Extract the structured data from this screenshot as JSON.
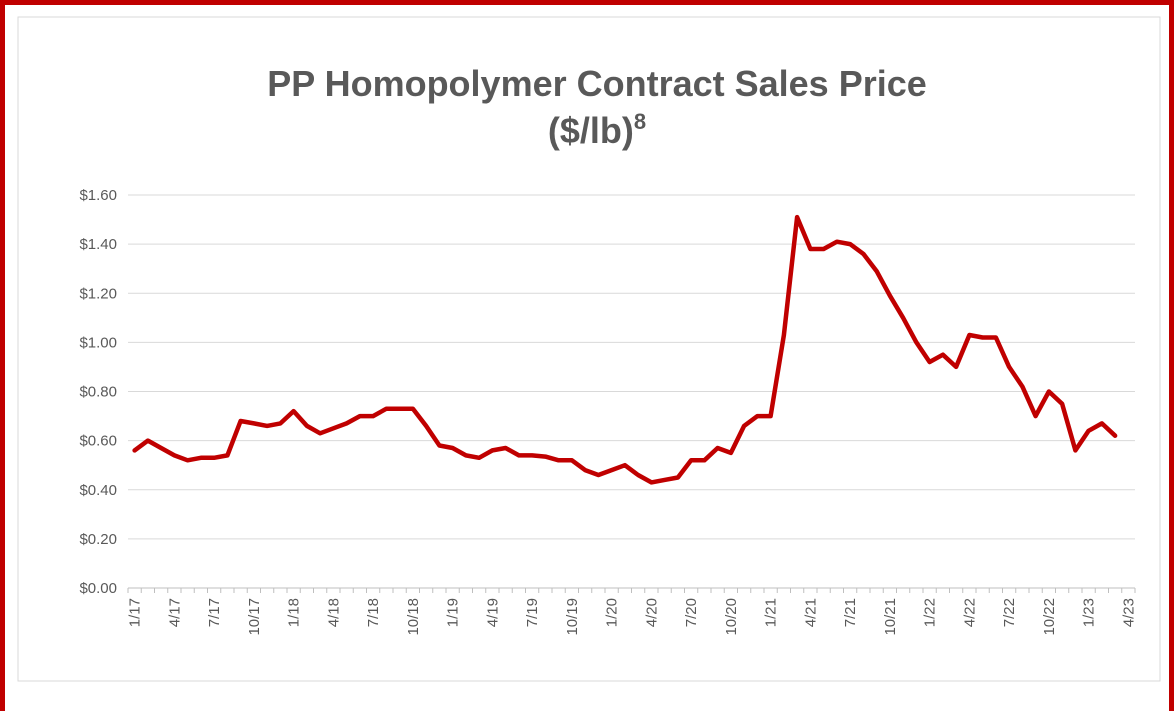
{
  "chart_data": {
    "type": "line",
    "title": [
      "PP Homopolymer Contract Sales Price",
      "($/lb)"
    ],
    "title_footnote_mark": "8",
    "categories": [
      "1/17",
      null,
      null,
      "4/17",
      null,
      null,
      "7/17",
      null,
      null,
      "10/17",
      null,
      null,
      "1/18",
      null,
      null,
      "4/18",
      null,
      null,
      "7/18",
      null,
      null,
      "10/18",
      null,
      null,
      "1/19",
      null,
      null,
      "4/19",
      null,
      null,
      "7/19",
      null,
      null,
      "10/19",
      null,
      null,
      "1/20",
      null,
      null,
      "4/20",
      null,
      null,
      "7/20",
      null,
      null,
      "10/20",
      null,
      null,
      "1/21",
      null,
      null,
      "4/21",
      null,
      null,
      "7/21",
      null,
      null,
      "10/21",
      null,
      null,
      "1/22",
      null,
      null,
      "4/22",
      null,
      null,
      "7/22",
      null,
      null,
      "10/22",
      null,
      null,
      "1/23",
      null,
      null,
      "4/23"
    ],
    "series": [
      {
        "name": "PP Homopolymer",
        "color": "#c00000",
        "values": [
          0.56,
          0.6,
          0.57,
          0.54,
          0.52,
          0.53,
          0.53,
          0.54,
          0.68,
          0.67,
          0.66,
          0.67,
          0.72,
          0.66,
          0.63,
          0.65,
          0.67,
          0.7,
          0.7,
          0.73,
          0.73,
          0.73,
          0.66,
          0.58,
          0.57,
          0.54,
          0.53,
          0.56,
          0.57,
          0.54,
          0.54,
          0.535,
          0.52,
          0.52,
          0.48,
          0.46,
          0.48,
          0.5,
          0.46,
          0.43,
          0.44,
          0.45,
          0.52,
          0.52,
          0.57,
          0.55,
          0.66,
          0.7,
          0.7,
          1.03,
          1.51,
          1.38,
          1.38,
          1.41,
          1.4,
          1.36,
          1.29,
          1.19,
          1.1,
          1.0,
          0.92,
          0.95,
          0.9,
          1.03,
          1.02,
          1.02,
          0.9,
          0.82,
          0.7,
          0.8,
          0.75,
          0.56,
          0.64,
          0.67,
          0.62,
          null
        ]
      }
    ],
    "ylim": [
      0,
      1.6
    ],
    "yticks": [
      {
        "value": 0,
        "label": "$0.00"
      },
      {
        "value": 0.2,
        "label": "$0.20"
      },
      {
        "value": 0.4,
        "label": "$0.40"
      },
      {
        "value": 0.6,
        "label": "$0.60"
      },
      {
        "value": 0.8,
        "label": "$0.80"
      },
      {
        "value": 1.0,
        "label": "$1.00"
      },
      {
        "value": 1.2,
        "label": "$1.20"
      },
      {
        "value": 1.4,
        "label": "$1.40"
      },
      {
        "value": 1.6,
        "label": "$1.60"
      }
    ],
    "grid": true
  }
}
